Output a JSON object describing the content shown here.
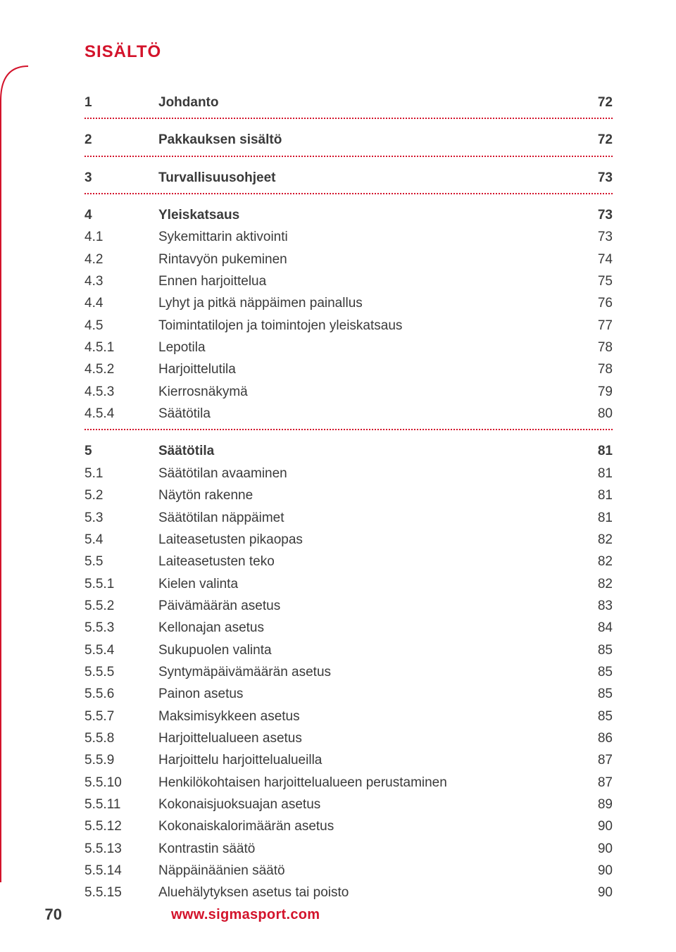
{
  "colors": {
    "accent": "#d3132b",
    "text": "#3a3a3a",
    "background": "#ffffff"
  },
  "typography": {
    "heading_fontsize": 24,
    "row_fontsize": 19,
    "footer_page_fontsize": 22,
    "footer_url_fontsize": 20
  },
  "heading": "SISÄLTÖ",
  "footer": {
    "page_number": "70",
    "url": "www.sigmasport.com"
  },
  "sections": [
    {
      "rows": [
        {
          "num": "1",
          "title": "Johdanto",
          "page": "72",
          "bold": true
        }
      ],
      "dotted_after": true
    },
    {
      "rows": [
        {
          "num": "2",
          "title": "Pakkauksen sisältö",
          "page": "72",
          "bold": true
        }
      ],
      "dotted_after": true
    },
    {
      "rows": [
        {
          "num": "3",
          "title": "Turvallisuusohjeet",
          "page": "73",
          "bold": true
        }
      ],
      "dotted_after": true
    },
    {
      "rows": [
        {
          "num": "4",
          "title": "Yleiskatsaus",
          "page": "73",
          "bold": true
        },
        {
          "num": "4.1",
          "title": "Sykemittarin aktivointi",
          "page": "73",
          "bold": false
        },
        {
          "num": "4.2",
          "title": "Rintavyön pukeminen",
          "page": "74",
          "bold": false
        },
        {
          "num": "4.3",
          "title": "Ennen harjoittelua",
          "page": "75",
          "bold": false
        },
        {
          "num": "4.4",
          "title": "Lyhyt ja pitkä näppäimen painallus",
          "page": "76",
          "bold": false
        },
        {
          "num": "4.5",
          "title": "Toimintatilojen ja toimintojen yleiskatsaus",
          "page": "77",
          "bold": false
        },
        {
          "num": "4.5.1",
          "title": "Lepotila",
          "page": "78",
          "bold": false
        },
        {
          "num": "4.5.2",
          "title": "Harjoittelutila",
          "page": "78",
          "bold": false
        },
        {
          "num": "4.5.3",
          "title": "Kierrosnäkymä",
          "page": "79",
          "bold": false
        },
        {
          "num": "4.5.4",
          "title": "Säätötila",
          "page": "80",
          "bold": false
        }
      ],
      "dotted_after": true
    },
    {
      "rows": [
        {
          "num": "5",
          "title": "Säätötila",
          "page": "81",
          "bold": true
        },
        {
          "num": "5.1",
          "title": "Säätötilan avaaminen",
          "page": "81",
          "bold": false
        },
        {
          "num": "5.2",
          "title": "Näytön rakenne",
          "page": "81",
          "bold": false
        },
        {
          "num": "5.3",
          "title": "Säätötilan näppäimet",
          "page": "81",
          "bold": false
        },
        {
          "num": "5.4",
          "title": "Laiteasetusten pikaopas",
          "page": "82",
          "bold": false
        },
        {
          "num": "5.5",
          "title": "Laiteasetusten teko",
          "page": "82",
          "bold": false
        },
        {
          "num": "5.5.1",
          "title": "Kielen valinta",
          "page": "82",
          "bold": false
        },
        {
          "num": "5.5.2",
          "title": "Päivämäärän asetus",
          "page": "83",
          "bold": false
        },
        {
          "num": "5.5.3",
          "title": "Kellonajan asetus",
          "page": "84",
          "bold": false
        },
        {
          "num": "5.5.4",
          "title": "Sukupuolen valinta",
          "page": "85",
          "bold": false
        },
        {
          "num": "5.5.5",
          "title": "Syntymäpäivämäärän asetus",
          "page": "85",
          "bold": false
        },
        {
          "num": "5.5.6",
          "title": "Painon asetus",
          "page": "85",
          "bold": false
        },
        {
          "num": "5.5.7",
          "title": "Maksimisykkeen asetus",
          "page": "85",
          "bold": false
        },
        {
          "num": "5.5.8",
          "title": "Harjoittelualueen asetus",
          "page": "86",
          "bold": false
        },
        {
          "num": "5.5.9",
          "title": "Harjoittelu harjoittelualueilla",
          "page": "87",
          "bold": false
        },
        {
          "num": "5.5.10",
          "title": "Henkilökohtaisen harjoittelualueen perustaminen",
          "page": "87",
          "bold": false
        },
        {
          "num": "5.5.11",
          "title": "Kokonaisjuoksuajan asetus",
          "page": "89",
          "bold": false
        },
        {
          "num": "5.5.12",
          "title": "Kokonaiskalorimäärän asetus",
          "page": "90",
          "bold": false
        },
        {
          "num": "5.5.13",
          "title": "Kontrastin säätö",
          "page": "90",
          "bold": false
        },
        {
          "num": "5.5.14",
          "title": "Näppäinäänien säätö",
          "page": "90",
          "bold": false
        },
        {
          "num": "5.5.15",
          "title": "Aluehälytyksen asetus tai poisto",
          "page": "90",
          "bold": false
        }
      ],
      "dotted_after": false
    }
  ]
}
